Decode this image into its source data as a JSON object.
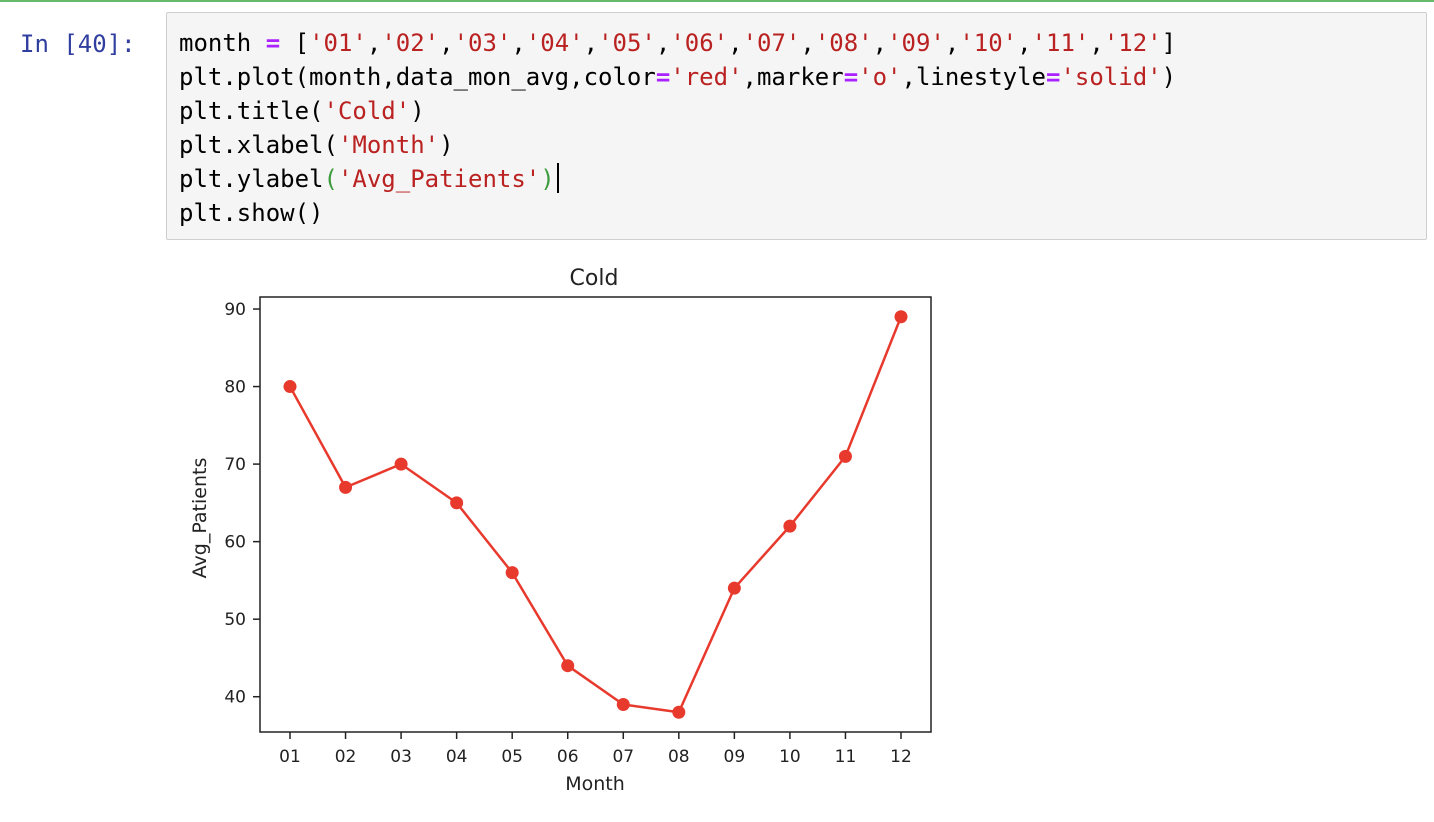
{
  "notebook": {
    "prompt": "In [40]:",
    "code_lines": [
      [
        {
          "t": "month ",
          "c": ""
        },
        {
          "t": "=",
          "c": "o"
        },
        {
          "t": " [",
          "c": ""
        },
        {
          "t": "'01'",
          "c": "s"
        },
        {
          "t": ",",
          "c": ""
        },
        {
          "t": "'02'",
          "c": "s"
        },
        {
          "t": ",",
          "c": ""
        },
        {
          "t": "'03'",
          "c": "s"
        },
        {
          "t": ",",
          "c": ""
        },
        {
          "t": "'04'",
          "c": "s"
        },
        {
          "t": ",",
          "c": ""
        },
        {
          "t": "'05'",
          "c": "s"
        },
        {
          "t": ",",
          "c": ""
        },
        {
          "t": "'06'",
          "c": "s"
        },
        {
          "t": ",",
          "c": ""
        },
        {
          "t": "'07'",
          "c": "s"
        },
        {
          "t": ",",
          "c": ""
        },
        {
          "t": "'08'",
          "c": "s"
        },
        {
          "t": ",",
          "c": ""
        },
        {
          "t": "'09'",
          "c": "s"
        },
        {
          "t": ",",
          "c": ""
        },
        {
          "t": "'10'",
          "c": "s"
        },
        {
          "t": ",",
          "c": ""
        },
        {
          "t": "'11'",
          "c": "s"
        },
        {
          "t": ",",
          "c": ""
        },
        {
          "t": "'12'",
          "c": "s"
        },
        {
          "t": "]",
          "c": ""
        }
      ],
      [
        {
          "t": "plt.plot(month,data_mon_avg,color",
          "c": ""
        },
        {
          "t": "=",
          "c": "o"
        },
        {
          "t": "'red'",
          "c": "s"
        },
        {
          "t": ",marker",
          "c": ""
        },
        {
          "t": "=",
          "c": "o"
        },
        {
          "t": "'o'",
          "c": "s"
        },
        {
          "t": ",linestyle",
          "c": ""
        },
        {
          "t": "=",
          "c": "o"
        },
        {
          "t": "'solid'",
          "c": "s"
        },
        {
          "t": ")",
          "c": ""
        }
      ],
      [
        {
          "t": "plt.title(",
          "c": ""
        },
        {
          "t": "'Cold'",
          "c": "s"
        },
        {
          "t": ")",
          "c": ""
        }
      ],
      [
        {
          "t": "plt.xlabel(",
          "c": ""
        },
        {
          "t": "'Month'",
          "c": "s"
        },
        {
          "t": ")",
          "c": ""
        }
      ],
      [
        {
          "t": "plt.ylabel",
          "c": ""
        },
        {
          "t": "(",
          "c": "m"
        },
        {
          "t": "'Avg_Patients'",
          "c": "s"
        },
        {
          "t": ")",
          "c": "m"
        }
      ],
      [
        {
          "t": "plt.show()",
          "c": ""
        }
      ]
    ],
    "cursor_line": 4
  },
  "colors": {
    "line": "#e8392d",
    "string": "#ba2121",
    "operator": "#aa22ff",
    "prompt": "#303f9f",
    "cell_border_top": "#66bb6a"
  },
  "chart_data": {
    "type": "line",
    "title": "Cold",
    "xlabel": "Month",
    "ylabel": "Avg_Patients",
    "categories": [
      "01",
      "02",
      "03",
      "04",
      "05",
      "06",
      "07",
      "08",
      "09",
      "10",
      "11",
      "12"
    ],
    "values": [
      80,
      67,
      70,
      65,
      56,
      44,
      39,
      38,
      54,
      62,
      71,
      89
    ],
    "yticks": [
      40,
      50,
      60,
      70,
      80,
      90
    ],
    "ylim": [
      35.45,
      91.55
    ],
    "marker": "o",
    "linestyle": "solid",
    "grid": false
  }
}
